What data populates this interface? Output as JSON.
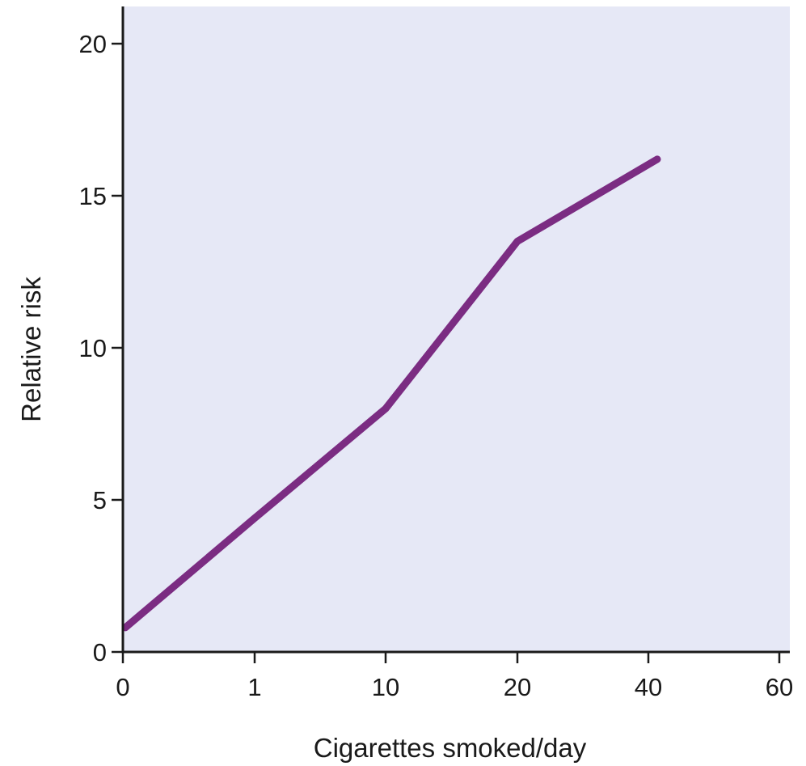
{
  "chart_data": {
    "type": "line",
    "xlabel": "Cigarettes smoked/day",
    "ylabel": "Relative risk",
    "x_tick_labels": [
      "0",
      "1",
      "10",
      "20",
      "40",
      "60"
    ],
    "y_ticks": [
      0,
      5,
      10,
      15,
      20
    ],
    "ylim": [
      0,
      21
    ],
    "grid": false,
    "series": [
      {
        "x": [
          "0",
          "1",
          "10",
          "20",
          "40"
        ],
        "y": [
          0.8,
          4.4,
          8.0,
          13.5,
          16.2
        ]
      }
    ],
    "colors": {
      "plot_background": "#e6e8f6",
      "line": "#7b2c82",
      "axis": "#1a1a1a"
    }
  }
}
